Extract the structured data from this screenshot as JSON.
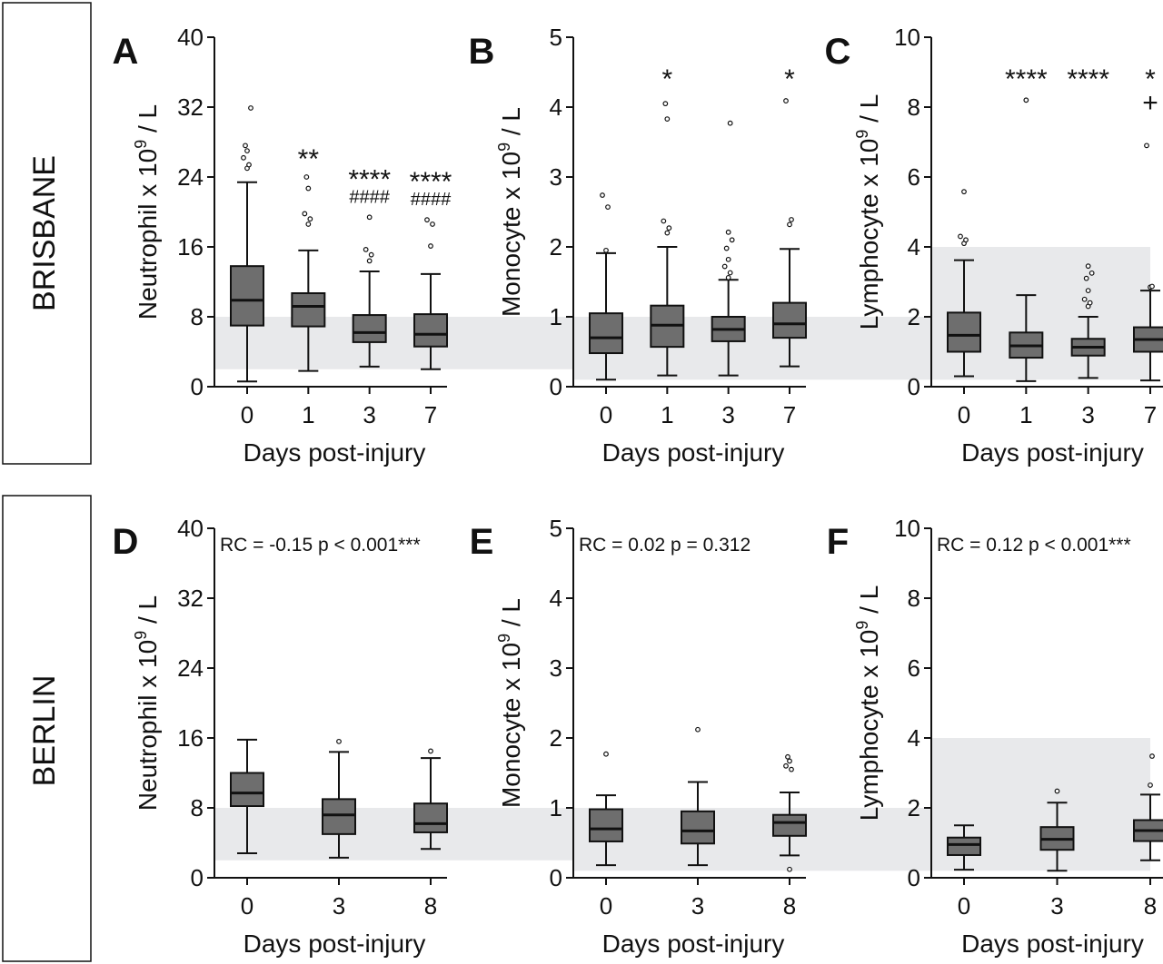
{
  "rows": [
    {
      "label": "BRISBANE"
    },
    {
      "label": "BERLIN"
    }
  ],
  "colors": {
    "box_fill": "#6e6e6e",
    "reference_band": "#e8e9eb",
    "ink": "#111111"
  },
  "chart_data": [
    {
      "type": "boxplot",
      "panel": "A",
      "ylabel_base": "Neutrophil x 10",
      "ylabel_sup": "9",
      "ylabel_tail": " / L",
      "xlabel": "Days post-injury",
      "ylim": [
        0,
        40
      ],
      "yticks": [
        0,
        8,
        16,
        24,
        32,
        40
      ],
      "reference_range": [
        2,
        8
      ],
      "categories": [
        "0",
        "1",
        "3",
        "7"
      ],
      "boxes": [
        {
          "whisker_low": 0.6,
          "q1": 7.0,
          "median": 9.9,
          "q3": 13.8,
          "whisker_high": 23.4,
          "outliers": [
            25.0,
            25.4,
            26.2,
            27.0,
            27.6,
            31.9
          ]
        },
        {
          "whisker_low": 1.8,
          "q1": 6.9,
          "median": 9.2,
          "q3": 10.7,
          "whisker_high": 15.6,
          "outliers": [
            18.6,
            19.2,
            19.8,
            22.7,
            24.0
          ]
        },
        {
          "whisker_low": 2.3,
          "q1": 5.1,
          "median": 6.2,
          "q3": 8.2,
          "whisker_high": 13.2,
          "outliers": [
            14.4,
            15.1,
            15.7,
            19.4
          ]
        },
        {
          "whisker_low": 2.0,
          "q1": 4.6,
          "median": 6.0,
          "q3": 8.3,
          "whisker_high": 12.9,
          "outliers": [
            16.1,
            18.6,
            19.1
          ]
        }
      ],
      "annotations": [
        {
          "category": "1",
          "lines": [
            "**"
          ]
        },
        {
          "category": "3",
          "lines": [
            "****",
            "####"
          ]
        },
        {
          "category": "7",
          "lines": [
            "****",
            "####"
          ]
        }
      ],
      "stats": ""
    },
    {
      "type": "boxplot",
      "panel": "B",
      "ylabel_base": "Monocyte x 10",
      "ylabel_sup": "9",
      "ylabel_tail": " / L",
      "xlabel": "Days post-injury",
      "ylim": [
        0,
        5
      ],
      "yticks": [
        0,
        1,
        2,
        3,
        4,
        5
      ],
      "reference_range": [
        0.1,
        1.0
      ],
      "categories": [
        "0",
        "1",
        "3",
        "7"
      ],
      "boxes": [
        {
          "whisker_low": 0.1,
          "q1": 0.48,
          "median": 0.7,
          "q3": 1.05,
          "whisker_high": 1.91,
          "outliers": [
            1.95,
            2.57,
            2.74
          ]
        },
        {
          "whisker_low": 0.16,
          "q1": 0.57,
          "median": 0.88,
          "q3": 1.16,
          "whisker_high": 2.0,
          "outliers": [
            2.2,
            2.27,
            2.37,
            3.83,
            4.05
          ]
        },
        {
          "whisker_low": 0.16,
          "q1": 0.65,
          "median": 0.82,
          "q3": 1.0,
          "whisker_high": 1.53,
          "outliers": [
            1.56,
            1.63,
            1.72,
            1.82,
            1.98,
            2.1,
            2.21,
            3.77
          ]
        },
        {
          "whisker_low": 0.29,
          "q1": 0.7,
          "median": 0.9,
          "q3": 1.2,
          "whisker_high": 1.97,
          "outliers": [
            2.32,
            2.39,
            4.09
          ]
        }
      ],
      "annotations": [
        {
          "category": "1",
          "lines": [
            "*"
          ]
        },
        {
          "category": "7",
          "lines": [
            "*"
          ]
        }
      ],
      "stats": ""
    },
    {
      "type": "boxplot",
      "panel": "C",
      "ylabel_base": "Lymphocyte x 10",
      "ylabel_sup": "9",
      "ylabel_tail": " / L",
      "xlabel": "Days post-injury",
      "ylim": [
        0,
        10
      ],
      "yticks": [
        0,
        2,
        4,
        6,
        8,
        10
      ],
      "reference_range": [
        1.0,
        4.0
      ],
      "categories": [
        "0",
        "1",
        "3",
        "7"
      ],
      "boxes": [
        {
          "whisker_low": 0.3,
          "q1": 1.0,
          "median": 1.47,
          "q3": 2.12,
          "whisker_high": 3.62,
          "outliers": [
            4.1,
            4.2,
            4.3,
            5.58
          ]
        },
        {
          "whisker_low": 0.16,
          "q1": 0.83,
          "median": 1.17,
          "q3": 1.55,
          "whisker_high": 2.62,
          "outliers": [
            8.2
          ]
        },
        {
          "whisker_low": 0.25,
          "q1": 0.89,
          "median": 1.13,
          "q3": 1.37,
          "whisker_high": 2.0,
          "outliers": [
            2.3,
            2.4,
            2.5,
            2.75,
            3.1,
            3.25,
            3.45
          ]
        },
        {
          "whisker_low": 0.18,
          "q1": 1.0,
          "median": 1.35,
          "q3": 1.7,
          "whisker_high": 2.75,
          "outliers": [
            2.85,
            2.87,
            6.9
          ]
        }
      ],
      "annotations": [
        {
          "category": "1",
          "lines": [
            "****"
          ]
        },
        {
          "category": "3",
          "lines": [
            "****"
          ]
        },
        {
          "category": "7",
          "lines": [
            "*",
            "+"
          ]
        }
      ],
      "stats": ""
    },
    {
      "type": "boxplot",
      "panel": "D",
      "ylabel_base": "Neutrophil x 10",
      "ylabel_sup": "9",
      "ylabel_tail": " / L",
      "xlabel": "Days post-injury",
      "ylim": [
        0,
        40
      ],
      "yticks": [
        0,
        8,
        16,
        24,
        32,
        40
      ],
      "reference_range": [
        2,
        8
      ],
      "categories": [
        "0",
        "3",
        "8"
      ],
      "boxes": [
        {
          "whisker_low": 2.8,
          "q1": 8.2,
          "median": 9.7,
          "q3": 12.0,
          "whisker_high": 15.8,
          "outliers": []
        },
        {
          "whisker_low": 2.3,
          "q1": 5.0,
          "median": 7.2,
          "q3": 9.0,
          "whisker_high": 14.4,
          "outliers": [
            15.6
          ]
        },
        {
          "whisker_low": 3.3,
          "q1": 5.2,
          "median": 6.2,
          "q3": 8.5,
          "whisker_high": 13.7,
          "outliers": [
            14.5
          ]
        }
      ],
      "annotations": [],
      "stats": "RC = -0.15  p < 0.001***"
    },
    {
      "type": "boxplot",
      "panel": "E",
      "ylabel_base": "Monocyte x 10",
      "ylabel_sup": "9",
      "ylabel_tail": " / L",
      "xlabel": "Days post-injury",
      "ylim": [
        0,
        5
      ],
      "yticks": [
        0,
        1,
        2,
        3,
        4,
        5
      ],
      "reference_range": [
        0.1,
        1.0
      ],
      "categories": [
        "0",
        "3",
        "8"
      ],
      "boxes": [
        {
          "whisker_low": 0.18,
          "q1": 0.52,
          "median": 0.7,
          "q3": 0.98,
          "whisker_high": 1.18,
          "outliers": [
            1.77
          ]
        },
        {
          "whisker_low": 0.18,
          "q1": 0.49,
          "median": 0.67,
          "q3": 0.95,
          "whisker_high": 1.37,
          "outliers": [
            2.12
          ]
        },
        {
          "whisker_low": 0.32,
          "q1": 0.6,
          "median": 0.79,
          "q3": 0.9,
          "whisker_high": 1.22,
          "outliers": [
            0.12,
            1.55,
            1.6,
            1.67,
            1.73
          ]
        }
      ],
      "annotations": [],
      "stats": "RC = 0.02   p = 0.312"
    },
    {
      "type": "boxplot",
      "panel": "F",
      "ylabel_base": "Lymphocyte x 10",
      "ylabel_sup": "9",
      "ylabel_tail": " / L",
      "xlabel": "Days post-injury",
      "ylim": [
        0,
        10
      ],
      "yticks": [
        0,
        2,
        4,
        6,
        8,
        10
      ],
      "reference_range": [
        1.0,
        4.0
      ],
      "categories": [
        "0",
        "3",
        "8"
      ],
      "boxes": [
        {
          "whisker_low": 0.23,
          "q1": 0.65,
          "median": 0.95,
          "q3": 1.15,
          "whisker_high": 1.5,
          "outliers": []
        },
        {
          "whisker_low": 0.2,
          "q1": 0.8,
          "median": 1.1,
          "q3": 1.45,
          "whisker_high": 2.15,
          "outliers": [
            2.48
          ]
        },
        {
          "whisker_low": 0.5,
          "q1": 1.05,
          "median": 1.35,
          "q3": 1.65,
          "whisker_high": 2.38,
          "outliers": [
            2.65,
            3.48
          ]
        }
      ],
      "annotations": [],
      "stats": "RC = 0.12  p < 0.001***"
    }
  ]
}
